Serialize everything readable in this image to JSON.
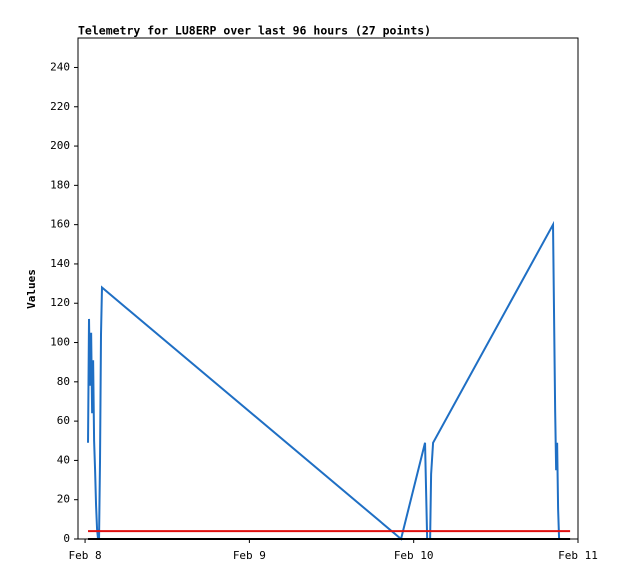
{
  "chart_data": {
    "type": "line",
    "title": "Telemetry for LU8ERP over last 96 hours (27 points)",
    "y_label": "Values",
    "xlim": [
      -0.043,
      3.0
    ],
    "xticks": [
      {
        "value": 0,
        "label": "Feb 8"
      },
      {
        "value": 1,
        "label": "Feb 9"
      },
      {
        "value": 2,
        "label": "Feb 10"
      },
      {
        "value": 3,
        "label": "Feb 11"
      }
    ],
    "ylim": [
      0,
      255
    ],
    "yticks": [
      0,
      20,
      40,
      60,
      80,
      100,
      120,
      140,
      160,
      180,
      200,
      220,
      240
    ],
    "series": [
      {
        "color": "#1f6fc4",
        "x": [
          0.018,
          0.024,
          0.03,
          0.037,
          0.043,
          0.049,
          0.055,
          0.061,
          0.067,
          0.073,
          0.079,
          0.085,
          0.091,
          0.097,
          0.103,
          1.923,
          2.069,
          2.082,
          2.1,
          2.106,
          2.118,
          2.848,
          2.861,
          2.867,
          2.873,
          2.879,
          2.885
        ],
        "values": [
          49,
          112,
          78,
          105,
          64,
          91,
          50,
          35,
          17,
          5,
          0,
          0,
          40,
          104,
          128,
          0,
          49,
          0,
          0,
          33,
          49,
          160,
          65,
          35,
          49,
          15,
          0
        ]
      },
      {
        "color": "#e01010",
        "x": [
          0.018,
          2.952
        ],
        "values": [
          4,
          4
        ]
      },
      {
        "color": "#000000",
        "x": [
          0.018,
          2.952
        ],
        "values": [
          0,
          0
        ]
      }
    ]
  }
}
